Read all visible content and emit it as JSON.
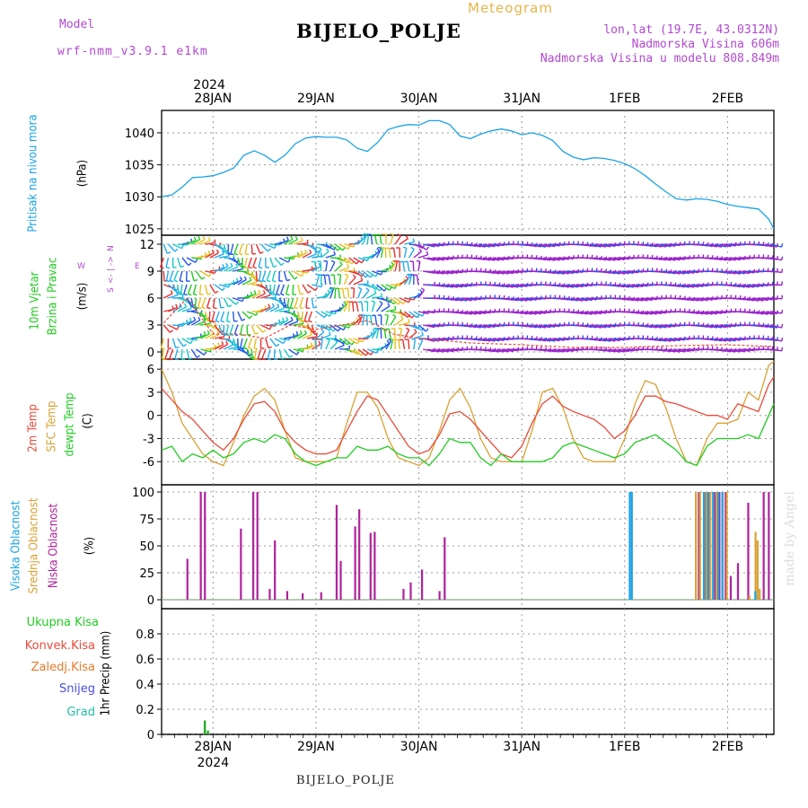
{
  "header": {
    "model_label": "Model",
    "model_name": "wrf-nmm_v3.9.1 e1km",
    "meteogram_label": "Meteogram",
    "station_title": "BIJELO_POLJE",
    "lonlat": "lon,lat (19.7E, 43.0312N)",
    "altitude": "Nadmorska Visina 606m",
    "model_altitude": "Nadmorska Visina u modelu 808.849m",
    "footer_station": "BIJELO_POLJE",
    "watermark": "made by Angel"
  },
  "colors": {
    "pressure": "#1aa3e6",
    "temp2m": "#e84b3a",
    "sfc_temp": "#d9a235",
    "dewpoint": "#22cc22",
    "high_cloud": "#1aa3e6",
    "mid_cloud": "#d9a235",
    "low_cloud": "#b0229c",
    "total_precip": "#22aa22",
    "wind_scale_label": "#b049d0"
  },
  "chart_data": [
    {
      "type": "line",
      "panel": "pressure",
      "xlabel_top_year": "2024",
      "x_ticks": [
        "28JAN",
        "29JAN",
        "30JAN",
        "31JAN",
        "1FEB",
        "2FEB"
      ],
      "ylabel": "Pritisak na nivou mora",
      "yunit": "(hPa)",
      "ylim": [
        1024,
        1043.5
      ],
      "yticks": [
        1025,
        1030,
        1035,
        1040
      ],
      "x_start_day": 27.5,
      "x_end_day": 33.45,
      "series": [
        {
          "name": "Pritisak na nivou mora",
          "x": [
            27.5,
            27.6,
            27.7,
            27.8,
            27.9,
            28.0,
            28.1,
            28.2,
            28.3,
            28.4,
            28.5,
            28.6,
            28.7,
            28.8,
            28.9,
            29.0,
            29.1,
            29.2,
            29.3,
            29.4,
            29.5,
            29.6,
            29.7,
            29.8,
            29.9,
            30.0,
            30.1,
            30.2,
            30.3,
            30.4,
            30.5,
            30.6,
            30.7,
            30.8,
            30.9,
            31.0,
            31.1,
            31.2,
            31.3,
            31.4,
            31.5,
            31.6,
            31.7,
            31.8,
            31.9,
            32.0,
            32.1,
            32.2,
            32.3,
            32.4,
            32.5,
            32.6,
            32.7,
            32.8,
            32.9,
            33.0,
            33.1,
            33.2,
            33.3,
            33.4,
            33.45
          ],
          "values": [
            1030.0,
            1030.3,
            1031.5,
            1033.0,
            1033.1,
            1033.3,
            1033.8,
            1034.5,
            1036.5,
            1037.2,
            1036.5,
            1035.4,
            1036.5,
            1038.3,
            1039.2,
            1039.4,
            1039.3,
            1039.3,
            1038.9,
            1037.6,
            1037.1,
            1038.5,
            1040.5,
            1041.0,
            1041.3,
            1041.2,
            1041.9,
            1041.9,
            1041.3,
            1039.5,
            1039.1,
            1039.8,
            1040.3,
            1040.6,
            1040.3,
            1039.7,
            1040.0,
            1039.6,
            1038.8,
            1037.1,
            1036.2,
            1035.8,
            1036.1,
            1036.0,
            1035.7,
            1035.2,
            1034.4,
            1033.3,
            1032.0,
            1030.8,
            1029.7,
            1029.5,
            1029.7,
            1029.6,
            1029.3,
            1028.8,
            1028.5,
            1028.3,
            1028.1,
            1026.5,
            1025.0
          ]
        }
      ]
    },
    {
      "type": "scatter",
      "panel": "wind",
      "ylabel": "10m Vjetar Brzina i Pravac",
      "yunit": "(m/s)",
      "direction_legend": [
        "N",
        "E",
        "W",
        "S"
      ],
      "ylim": [
        -0.8,
        13
      ],
      "yticks": [
        0,
        3,
        6,
        9,
        12
      ],
      "note": "dense barbs; speeds read roughly from panel",
      "series": [
        {
          "name": "wind speed",
          "x": [
            27.5,
            27.75,
            28.0,
            28.25,
            28.5,
            28.75,
            29.0,
            29.25,
            29.5,
            29.75,
            30.0,
            30.5,
            31.0,
            31.5,
            32.0,
            32.5,
            33.0,
            33.45
          ],
          "values": [
            3,
            6,
            2,
            2,
            1.5,
            3,
            2.5,
            3,
            3.5,
            2,
            1.5,
            1,
            0.8,
            0.5,
            0.5,
            0.7,
            0.8,
            0.6
          ]
        }
      ]
    },
    {
      "type": "line",
      "panel": "temperature",
      "ylabel": "2m Temp / SFC Temp / dewpt Temp",
      "yunit": "(C)",
      "ylim": [
        -9,
        7.3
      ],
      "yticks": [
        -6,
        -3,
        0,
        3,
        6
      ],
      "series": [
        {
          "name": "2m Temp",
          "x": [
            27.5,
            27.6,
            27.7,
            27.8,
            27.9,
            28.0,
            28.1,
            28.2,
            28.3,
            28.4,
            28.5,
            28.6,
            28.7,
            28.8,
            28.9,
            29.0,
            29.1,
            29.2,
            29.3,
            29.4,
            29.5,
            29.6,
            29.7,
            29.8,
            29.9,
            30.0,
            30.1,
            30.2,
            30.3,
            30.4,
            30.5,
            30.6,
            30.7,
            30.8,
            30.9,
            31.0,
            31.1,
            31.2,
            31.3,
            31.4,
            31.5,
            31.6,
            31.7,
            31.8,
            31.9,
            32.0,
            32.1,
            32.2,
            32.3,
            32.4,
            32.5,
            32.6,
            32.7,
            32.8,
            32.9,
            33.0,
            33.1,
            33.2,
            33.3,
            33.4,
            33.45
          ],
          "values": [
            3.5,
            2,
            0.5,
            -0.5,
            -2,
            -3.5,
            -4.5,
            -3,
            -0.5,
            1.5,
            1.8,
            0.5,
            -2,
            -3.5,
            -4.5,
            -5,
            -5,
            -4.5,
            -2,
            0.5,
            2.5,
            2,
            0,
            -2,
            -4,
            -5,
            -4.5,
            -2.5,
            0.2,
            0.5,
            -0.5,
            -2,
            -3.5,
            -5,
            -5.5,
            -4,
            -1,
            1.5,
            2.5,
            1.2,
            0.5,
            0,
            -0.5,
            -1.5,
            -3,
            -2,
            0,
            2.5,
            2.5,
            1.8,
            1.5,
            1,
            0.5,
            0,
            0,
            -0.5,
            1.5,
            1,
            0.5,
            4,
            5
          ]
        },
        {
          "name": "SFC Temp",
          "x": [
            27.5,
            27.6,
            27.7,
            27.8,
            27.9,
            28.0,
            28.1,
            28.2,
            28.3,
            28.4,
            28.5,
            28.6,
            28.7,
            28.8,
            28.9,
            29.0,
            29.1,
            29.2,
            29.3,
            29.4,
            29.5,
            29.6,
            29.7,
            29.8,
            29.9,
            30.0,
            30.1,
            30.2,
            30.3,
            30.4,
            30.5,
            30.6,
            30.7,
            30.8,
            30.9,
            31.0,
            31.1,
            31.2,
            31.3,
            31.4,
            31.5,
            31.6,
            31.7,
            31.8,
            31.9,
            32.0,
            32.1,
            32.2,
            32.3,
            32.4,
            32.5,
            32.6,
            32.7,
            32.8,
            32.9,
            33.0,
            33.1,
            33.2,
            33.3,
            33.4,
            33.45
          ],
          "values": [
            6,
            3,
            -1,
            -3,
            -5,
            -6,
            -6.5,
            -3.5,
            0,
            2.5,
            3.5,
            2,
            -2,
            -5.5,
            -6,
            -6,
            -6,
            -5.5,
            -1,
            3,
            3,
            1,
            -3,
            -5.5,
            -6,
            -6.5,
            -5.5,
            -2,
            2,
            3.5,
            1,
            -3,
            -5.5,
            -6,
            -6,
            -6,
            -2,
            3,
            3.5,
            1,
            -3,
            -5.5,
            -6,
            -6,
            -6,
            -3,
            1.5,
            4.5,
            4,
            1,
            -3,
            -6,
            -6.5,
            -3,
            -1,
            -1,
            -0.5,
            3,
            2,
            6.5,
            7
          ]
        },
        {
          "name": "dewpt Temp",
          "x": [
            27.5,
            27.6,
            27.7,
            27.8,
            27.9,
            28.0,
            28.1,
            28.2,
            28.3,
            28.4,
            28.5,
            28.6,
            28.7,
            28.8,
            28.9,
            29.0,
            29.1,
            29.2,
            29.3,
            29.4,
            29.5,
            29.6,
            29.7,
            29.8,
            29.9,
            30.0,
            30.1,
            30.2,
            30.3,
            30.4,
            30.5,
            30.6,
            30.7,
            30.8,
            30.9,
            31.0,
            31.1,
            31.2,
            31.3,
            31.4,
            31.5,
            31.6,
            31.7,
            31.8,
            31.9,
            32.0,
            32.1,
            32.2,
            32.3,
            32.4,
            32.5,
            32.6,
            32.7,
            32.8,
            32.9,
            33.0,
            33.1,
            33.2,
            33.3,
            33.4,
            33.45
          ],
          "values": [
            -4.5,
            -4,
            -6,
            -5,
            -5.5,
            -4.5,
            -5.5,
            -5,
            -3.5,
            -3,
            -3.5,
            -2.5,
            -3,
            -5,
            -6,
            -6.5,
            -6,
            -5.5,
            -5.5,
            -4,
            -4.5,
            -4.5,
            -4,
            -5,
            -5.5,
            -5.5,
            -6.5,
            -5,
            -3,
            -3.5,
            -3.5,
            -5.5,
            -6.5,
            -5,
            -6,
            -6,
            -6,
            -6,
            -5.5,
            -4,
            -3.5,
            -4,
            -4.5,
            -5,
            -5.5,
            -5,
            -3.5,
            -3,
            -2.5,
            -3.5,
            -4.5,
            -6,
            -6.5,
            -4,
            -3,
            -3,
            -3,
            -2.5,
            -3,
            0,
            1.5
          ]
        }
      ]
    },
    {
      "type": "bar",
      "panel": "clouds",
      "ylabel": "Visoka Oblacnost / Srednja Oblacnost / Niska Oblacnost",
      "yunit": "(%)",
      "ylim": [
        0,
        100
      ],
      "yticks": [
        0,
        25,
        50,
        75,
        100
      ],
      "series": [
        {
          "name": "Niska Oblacnost",
          "x": [
            27.75,
            27.88,
            27.92,
            28.27,
            28.39,
            28.43,
            28.55,
            28.6,
            28.72,
            28.87,
            29.05,
            29.2,
            29.24,
            29.38,
            29.42,
            29.53,
            29.57,
            29.85,
            29.92,
            30.03,
            30.2,
            30.25,
            32.72,
            32.78,
            32.82,
            32.86,
            32.88,
            32.92,
            32.95,
            32.98,
            33.03,
            33.1,
            33.2,
            33.35,
            33.4
          ],
          "values": [
            38,
            100,
            100,
            66,
            100,
            100,
            10,
            55,
            8,
            6,
            7,
            88,
            36,
            68,
            84,
            62,
            63,
            10,
            16,
            28,
            8,
            58,
            100,
            100,
            100,
            100,
            100,
            100,
            100,
            100,
            22,
            34,
            90,
            100,
            100
          ]
        },
        {
          "name": "Srednja Oblacnost",
          "x": [
            32.7,
            32.74,
            32.8,
            32.84,
            32.9,
            32.96,
            33.0,
            33.22,
            33.28,
            33.3,
            33.32
          ],
          "values": [
            100,
            100,
            100,
            100,
            100,
            100,
            100,
            4,
            63,
            55,
            10
          ]
        },
        {
          "name": "Visoka Oblacnost",
          "x": [
            32.04,
            32.06,
            32.76,
            32.8,
            32.85,
            32.9,
            32.94,
            33.26
          ],
          "values": [
            100,
            100,
            100,
            100,
            100,
            100,
            100,
            8
          ]
        }
      ]
    },
    {
      "type": "bar",
      "panel": "precip",
      "ylabel": "1hr Precip",
      "yunit": "(mm)",
      "ylim": [
        0,
        1.0
      ],
      "yticks": [
        0,
        0.2,
        0.4,
        0.6,
        0.8
      ],
      "legend": [
        "Ukupna Kisa",
        "Konvek.Kisa",
        "Zaledj.Kisa",
        "Snijeg",
        "Grad"
      ],
      "x_ticks_bottom": [
        "28JAN",
        "29JAN",
        "30JAN",
        "31JAN",
        "1FEB",
        "2FEB"
      ],
      "xlabel_bottom_year": "2024",
      "series": [
        {
          "name": "Ukupna Kisa",
          "x": [
            27.92,
            27.95
          ],
          "values": [
            0.11,
            0.03
          ]
        }
      ]
    }
  ],
  "legend": {
    "pressure": "Pritisak na nivou mora",
    "wind": [
      "10m Vjetar",
      "Brzina i Pravac"
    ],
    "temperature": [
      "2m Temp",
      "SFC Temp",
      "dewpt Temp"
    ],
    "clouds": [
      "Visoka Oblacnost",
      "Srednja Oblacnost",
      "Niska Oblacnost"
    ],
    "precip": [
      "Ukupna Kisa",
      "Konvek.Kisa",
      "Zaledj.Kisa",
      "Snijeg",
      "Grad"
    ]
  }
}
